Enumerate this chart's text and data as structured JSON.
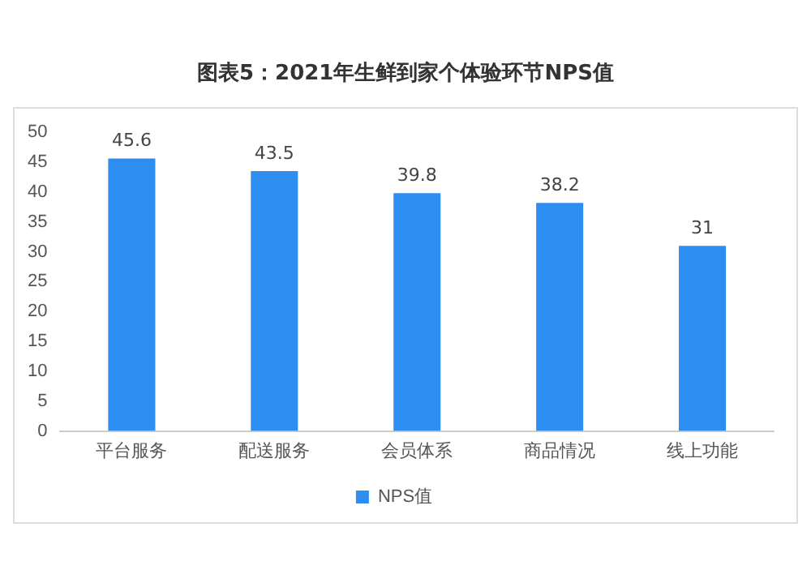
{
  "chart_data": {
    "type": "bar",
    "title": "图表5：2021年生鲜到家个体验环节NPS值",
    "categories": [
      "平台服务",
      "配送服务",
      "会员体系",
      "商品情况",
      "线上功能"
    ],
    "series": [
      {
        "name": "NPS值",
        "color": "#2e8ef0",
        "values": [
          45.6,
          43.5,
          39.8,
          38.2,
          31
        ]
      }
    ],
    "ylim": [
      0,
      50
    ],
    "yticks": [
      0,
      5,
      10,
      15,
      20,
      25,
      30,
      35,
      40,
      45,
      50
    ],
    "grid": false,
    "legend": "bottom",
    "data_labels": true
  }
}
